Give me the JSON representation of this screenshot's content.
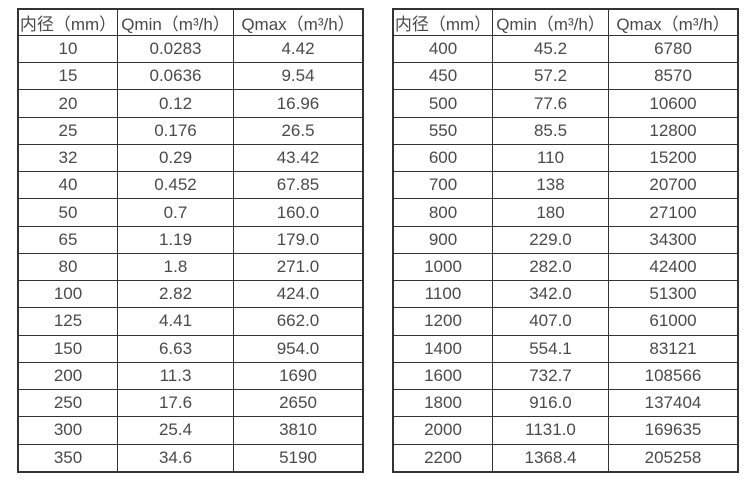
{
  "colors": {
    "background": "#ffffff",
    "border": "#333333",
    "text": "#4a4a4a"
  },
  "tables": [
    {
      "name": "flow-table-left",
      "headers": [
        "内径（mm）",
        "Qmin（m³/h）",
        "Qmax（m³/h）"
      ],
      "rows": [
        [
          "10",
          "0.0283",
          "4.42"
        ],
        [
          "15",
          "0.0636",
          "9.54"
        ],
        [
          "20",
          "0.12",
          "16.96"
        ],
        [
          "25",
          "0.176",
          "26.5"
        ],
        [
          "32",
          "0.29",
          "43.42"
        ],
        [
          "40",
          "0.452",
          "67.85"
        ],
        [
          "50",
          "0.7",
          "160.0"
        ],
        [
          "65",
          "1.19",
          "179.0"
        ],
        [
          "80",
          "1.8",
          "271.0"
        ],
        [
          "100",
          "2.82",
          "424.0"
        ],
        [
          "125",
          "4.41",
          "662.0"
        ],
        [
          "150",
          "6.63",
          "954.0"
        ],
        [
          "200",
          "11.3",
          "1690"
        ],
        [
          "250",
          "17.6",
          "2650"
        ],
        [
          "300",
          "25.4",
          "3810"
        ],
        [
          "350",
          "34.6",
          "5190"
        ]
      ]
    },
    {
      "name": "flow-table-right",
      "headers": [
        "内径（mm）",
        "Qmin（m³/h）",
        "Qmax（m³/h）"
      ],
      "rows": [
        [
          "400",
          "45.2",
          "6780"
        ],
        [
          "450",
          "57.2",
          "8570"
        ],
        [
          "500",
          "77.6",
          "10600"
        ],
        [
          "550",
          "85.5",
          "12800"
        ],
        [
          "600",
          "110",
          "15200"
        ],
        [
          "700",
          "138",
          "20700"
        ],
        [
          "800",
          "180",
          "27100"
        ],
        [
          "900",
          "229.0",
          "34300"
        ],
        [
          "1000",
          "282.0",
          "42400"
        ],
        [
          "1100",
          "342.0",
          "51300"
        ],
        [
          "1200",
          "407.0",
          "61000"
        ],
        [
          "1400",
          "554.1",
          "83121"
        ],
        [
          "1600",
          "732.7",
          "108566"
        ],
        [
          "1800",
          "916.0",
          "137404"
        ],
        [
          "2000",
          "1131.0",
          "169635"
        ],
        [
          "2200",
          "1368.4",
          "205258"
        ]
      ]
    }
  ]
}
